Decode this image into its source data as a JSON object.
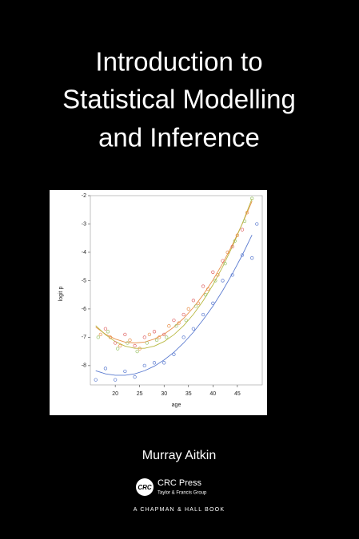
{
  "cover": {
    "title_lines": [
      "Introduction to",
      "Statistical Modelling",
      "and Inference"
    ],
    "author": "Murray Aitkin",
    "logo": "CRC",
    "publisher": "CRC Press",
    "publisher_group": "Taylor & Francis Group",
    "imprint": "A CHAPMAN & HALL BOOK"
  },
  "chart_data": {
    "type": "scatter",
    "xlabel": "age",
    "ylabel": "logit p",
    "xlim": [
      14.9,
      50.1
    ],
    "ylim": [
      -8.68,
      -2
    ],
    "xticks": [
      20,
      25,
      30,
      35,
      40,
      45
    ],
    "yticks": [
      -8,
      -7,
      -6,
      -5,
      -4,
      -3,
      -2
    ],
    "series": [
      {
        "color": "#e8904a",
        "x": [
          17,
          19,
          21,
          23,
          25,
          27,
          29,
          31,
          33,
          35,
          37,
          39,
          41,
          43,
          45,
          47
        ],
        "values": [
          -6.9,
          -7.0,
          -7.3,
          -7.1,
          -7.4,
          -6.9,
          -7.0,
          -6.6,
          -6.5,
          -6.0,
          -5.8,
          -5.3,
          -4.8,
          -4.0,
          -3.4,
          -2.6
        ]
      },
      {
        "color": "#9cc46a",
        "x": [
          16.5,
          18.5,
          20.5,
          22.5,
          24.5,
          26.5,
          28.5,
          30.5,
          32.5,
          34.5,
          36.5,
          38.5,
          40.5,
          42.5,
          44.5,
          46.5,
          48
        ],
        "values": [
          -7.0,
          -6.8,
          -7.4,
          -7.2,
          -7.5,
          -7.2,
          -7.1,
          -7.0,
          -6.6,
          -6.4,
          -5.9,
          -5.5,
          -5.0,
          -4.4,
          -3.6,
          -2.9,
          -2.1
        ]
      },
      {
        "color": "#e06666",
        "x": [
          18,
          20,
          22,
          24,
          26,
          28,
          30,
          32,
          34,
          36,
          38,
          40,
          42,
          44,
          46
        ],
        "values": [
          -6.7,
          -7.2,
          -6.9,
          -7.3,
          -7.0,
          -6.8,
          -6.9,
          -6.4,
          -6.2,
          -5.7,
          -5.2,
          -4.7,
          -4.3,
          -3.8,
          -3.2
        ]
      },
      {
        "color": "#5b7bd0",
        "x": [
          16,
          18,
          20,
          22,
          24,
          26,
          28,
          30,
          32,
          34,
          36,
          38,
          40,
          42,
          44,
          46,
          48,
          49
        ],
        "values": [
          -8.5,
          -8.1,
          -8.5,
          -8.2,
          -8.4,
          -8.0,
          -7.9,
          -7.9,
          -7.6,
          -7.0,
          -6.7,
          -6.2,
          -5.8,
          -5.0,
          -4.8,
          -4.1,
          -4.2,
          -3.0
        ]
      }
    ],
    "fits": [
      {
        "color": "#e8904a",
        "x": [
          16,
          18,
          20,
          22,
          24,
          26,
          28,
          30,
          32,
          34,
          36,
          38,
          40,
          42,
          44,
          46,
          48
        ],
        "values": [
          -6.64,
          -6.89,
          -7.06,
          -7.17,
          -7.2,
          -7.17,
          -7.06,
          -6.89,
          -6.64,
          -6.33,
          -5.95,
          -5.5,
          -4.98,
          -4.39,
          -3.73,
          -3.0,
          -2.2
        ]
      },
      {
        "color": "#b8b840",
        "x": [
          16,
          18,
          20,
          22,
          24,
          26,
          28,
          30,
          32,
          34,
          36,
          38,
          40,
          42,
          44,
          46,
          48
        ],
        "values": [
          -6.59,
          -6.91,
          -7.15,
          -7.31,
          -7.39,
          -7.39,
          -7.31,
          -7.15,
          -6.91,
          -6.59,
          -6.19,
          -5.71,
          -5.15,
          -4.51,
          -3.79,
          -2.99,
          -2.11
        ]
      },
      {
        "color": "#5b7bd0",
        "x": [
          16,
          18,
          20,
          22,
          24,
          26,
          28,
          30,
          32,
          34,
          36,
          38,
          40,
          42,
          44,
          46,
          48
        ],
        "values": [
          -8.18,
          -8.29,
          -8.34,
          -8.34,
          -8.29,
          -8.18,
          -8.02,
          -7.8,
          -7.53,
          -7.2,
          -6.82,
          -6.38,
          -5.9,
          -5.35,
          -4.75,
          -4.1,
          -3.39
        ]
      }
    ]
  }
}
